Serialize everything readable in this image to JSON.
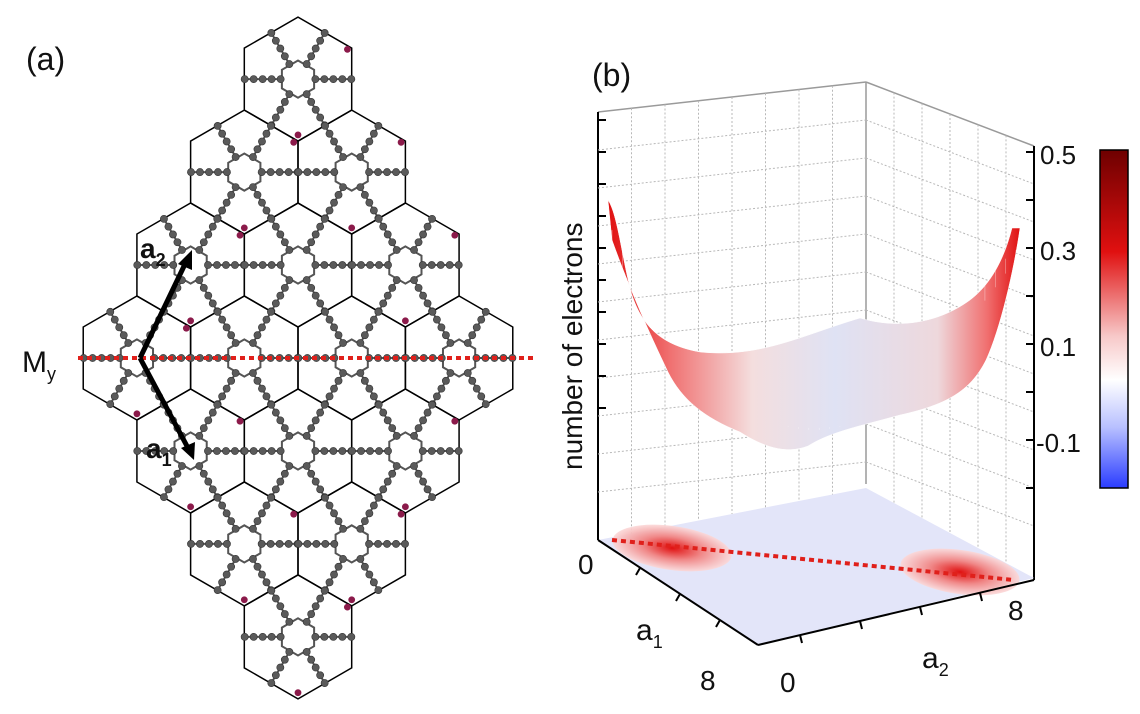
{
  "panel_a": {
    "label": "(a)",
    "mirror_label": "M",
    "mirror_sub": "y",
    "vector_a1": "a",
    "vector_a1_sub": "1",
    "vector_a2": "a",
    "vector_a2_sub": "2",
    "colors": {
      "bond": "#000000",
      "atom": "#5a5a5a",
      "edge_atom": "#8b1a4a",
      "mirror": "#e0201b"
    }
  },
  "panel_b": {
    "label": "(b)",
    "zlabel": "number of electrons",
    "axis_a1": "a",
    "axis_a1_sub": "1",
    "axis_a2": "a",
    "axis_a2_sub": "2",
    "tick_a1": [
      "0",
      "8"
    ],
    "tick_a2": [
      "0",
      "8"
    ],
    "colorbar_ticks": [
      "0.5",
      "0.3",
      "0.1",
      "-0.1"
    ],
    "colorbar_range": [
      -0.2,
      0.5
    ],
    "colors": {
      "negative": "#2a3cff",
      "neutral": "#ffffff",
      "positive": "#e01010",
      "max": "#7a0000"
    }
  }
}
